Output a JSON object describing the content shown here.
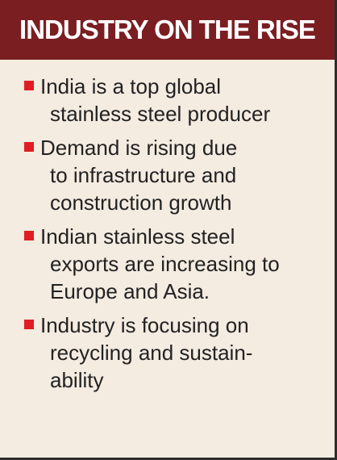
{
  "header": {
    "title": "INDUSTRY ON THE RISE"
  },
  "items": [
    {
      "lines": [
        "India is a top global",
        "stainless steel producer"
      ]
    },
    {
      "lines": [
        "Demand is rising due",
        "to infrastructure and",
        "construction growth"
      ]
    },
    {
      "lines": [
        "Indian stainless steel",
        "exports are increasing to",
        "Europe and Asia."
      ]
    },
    {
      "lines": [
        "Industry is focusing on",
        "recycling and sustain-",
        "ability"
      ]
    }
  ],
  "colors": {
    "header_bg": "#7a1e22",
    "body_bg": "#f4ebe1",
    "bullet": "#e11d24",
    "text": "#222222"
  }
}
